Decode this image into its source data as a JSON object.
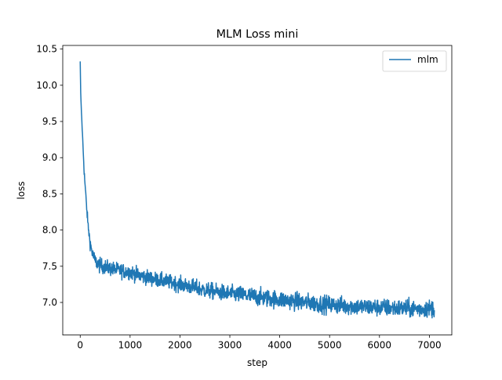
{
  "chart_data": {
    "type": "line",
    "title": "MLM Loss mini",
    "xlabel": "step",
    "ylabel": "loss",
    "xlim": [
      -350,
      7450
    ],
    "ylim": [
      6.55,
      10.55
    ],
    "xticks": [
      0,
      1000,
      2000,
      3000,
      4000,
      5000,
      6000,
      7000
    ],
    "yticks": [
      7.0,
      7.5,
      8.0,
      8.5,
      9.0,
      9.5,
      10.0,
      10.5
    ],
    "xtick_labels": [
      "0",
      "1000",
      "2000",
      "3000",
      "4000",
      "5000",
      "6000",
      "7000"
    ],
    "ytick_labels": [
      "7.0",
      "7.5",
      "8.0",
      "8.5",
      "9.0",
      "9.5",
      "10.0",
      "10.5"
    ],
    "grid": false,
    "legend_position": "top-right",
    "series": [
      {
        "name": "mlm",
        "color": "#1f77b4",
        "x": [
          0,
          10,
          20,
          40,
          60,
          80,
          100,
          130,
          160,
          200,
          250,
          300,
          350,
          400,
          500,
          600,
          800,
          1000,
          1200,
          1500,
          1800,
          2000,
          2200,
          2500,
          2800,
          3000,
          3300,
          3600,
          4000,
          4400,
          4800,
          5200,
          5600,
          6000,
          6400,
          6800,
          7100
        ],
        "y": [
          10.33,
          9.9,
          9.7,
          9.4,
          9.1,
          8.8,
          8.6,
          8.3,
          8.05,
          7.82,
          7.66,
          7.58,
          7.53,
          7.51,
          7.49,
          7.47,
          7.44,
          7.42,
          7.37,
          7.32,
          7.28,
          7.25,
          7.22,
          7.17,
          7.14,
          7.12,
          7.1,
          7.07,
          7.04,
          7.01,
          6.98,
          6.96,
          6.94,
          6.93,
          6.92,
          6.91,
          6.92
        ],
        "noise": [
          0,
          0,
          0.02,
          0.03,
          0.04,
          0.05,
          0.06,
          0.06,
          0.07,
          0.08,
          0.09,
          0.09,
          0.1,
          0.1,
          0.1,
          0.1,
          0.1,
          0.1,
          0.1,
          0.1,
          0.1,
          0.1,
          0.11,
          0.11,
          0.11,
          0.11,
          0.12,
          0.12,
          0.12,
          0.12,
          0.12,
          0.12,
          0.12,
          0.12,
          0.12,
          0.12,
          0.12
        ]
      }
    ]
  }
}
